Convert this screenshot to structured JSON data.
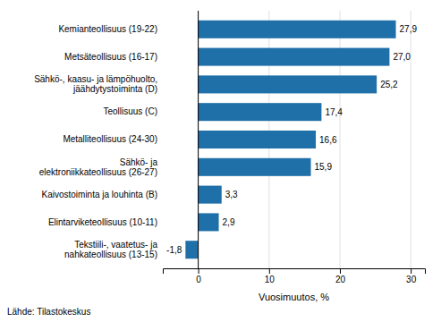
{
  "chart_data": {
    "type": "bar",
    "orientation": "horizontal",
    "categories": [
      "Tekstiili-, vaatetus- ja\nnahkateollisuus (13-15)",
      "Elintarviketeollisuus (10-11)",
      "Kaivostoiminta ja louhinta (B)",
      "Sähkö- ja\nelektroniikkateollisuus (26-27)",
      "Metalliteollisuus (24-30)",
      "Teollisuus (C)",
      "Sähkö-, kaasu- ja lämpöhuolto,\njäähdytystoiminta (D)",
      "Metsäteollisuus (16-17)",
      "Kemianteollisuus (19-22)"
    ],
    "values": [
      -1.8,
      2.9,
      3.3,
      15.9,
      16.6,
      17.4,
      25.2,
      27.0,
      27.9
    ],
    "value_labels": [
      "-1,8",
      "2,9",
      "3,3",
      "15,9",
      "16,6",
      "17,4",
      "25,2",
      "27,0",
      "27,9"
    ],
    "data_labels": true,
    "color": "#1F6FA8",
    "xlabel": "Vuosimuutos, %",
    "xlim": [
      -5,
      32
    ],
    "xticks": [
      0,
      10,
      20,
      30
    ],
    "grid": true,
    "source": "Lähde: Tilastokeskus"
  }
}
